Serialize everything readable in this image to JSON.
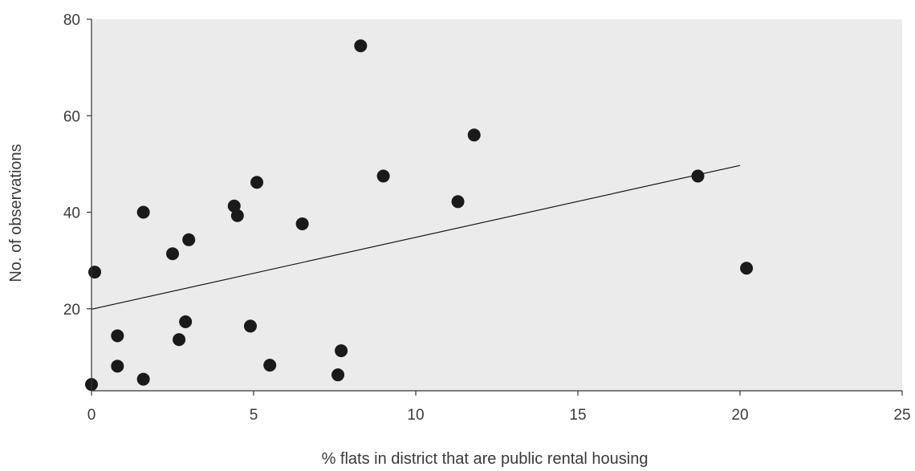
{
  "chart_data": {
    "type": "scatter",
    "title": "",
    "xlabel": "% flats in district that are public rental housing",
    "ylabel": "No. of observations",
    "xlim": [
      0,
      25
    ],
    "ylim": [
      3,
      80
    ],
    "xticks": [
      0,
      5,
      10,
      15,
      20,
      25
    ],
    "yticks": [
      20,
      40,
      60,
      80
    ],
    "xtick_labels": [
      "0",
      "5",
      "10",
      "15",
      "20",
      "25"
    ],
    "ytick_labels": [
      "20",
      "40",
      "60",
      "80"
    ],
    "grid": false,
    "legend": "none",
    "colors": {
      "plot_bg": "#ebebeb",
      "point": "#1a1a1a",
      "line": "#1a1a1a",
      "axis": "#333333"
    },
    "points": [
      {
        "x": 8.3,
        "y": 74.5
      },
      {
        "x": 11.8,
        "y": 56.0
      },
      {
        "x": 9.0,
        "y": 47.5
      },
      {
        "x": 18.7,
        "y": 47.5
      },
      {
        "x": 5.1,
        "y": 46.2
      },
      {
        "x": 11.3,
        "y": 42.2
      },
      {
        "x": 4.4,
        "y": 41.3
      },
      {
        "x": 1.6,
        "y": 40.0
      },
      {
        "x": 4.5,
        "y": 39.3
      },
      {
        "x": 6.5,
        "y": 37.6
      },
      {
        "x": 3.0,
        "y": 34.3
      },
      {
        "x": 2.5,
        "y": 31.4
      },
      {
        "x": 20.2,
        "y": 28.4
      },
      {
        "x": 0.1,
        "y": 27.6
      },
      {
        "x": 2.9,
        "y": 17.3
      },
      {
        "x": 4.9,
        "y": 16.4
      },
      {
        "x": 0.8,
        "y": 14.4
      },
      {
        "x": 2.7,
        "y": 13.6
      },
      {
        "x": 7.7,
        "y": 11.3
      },
      {
        "x": 5.5,
        "y": 8.3
      },
      {
        "x": 0.8,
        "y": 8.1
      },
      {
        "x": 7.6,
        "y": 6.3
      },
      {
        "x": 1.6,
        "y": 5.4
      },
      {
        "x": 0.0,
        "y": 4.3
      }
    ],
    "trendline": {
      "x": [
        0,
        20
      ],
      "y": [
        19.9,
        49.7
      ]
    }
  }
}
